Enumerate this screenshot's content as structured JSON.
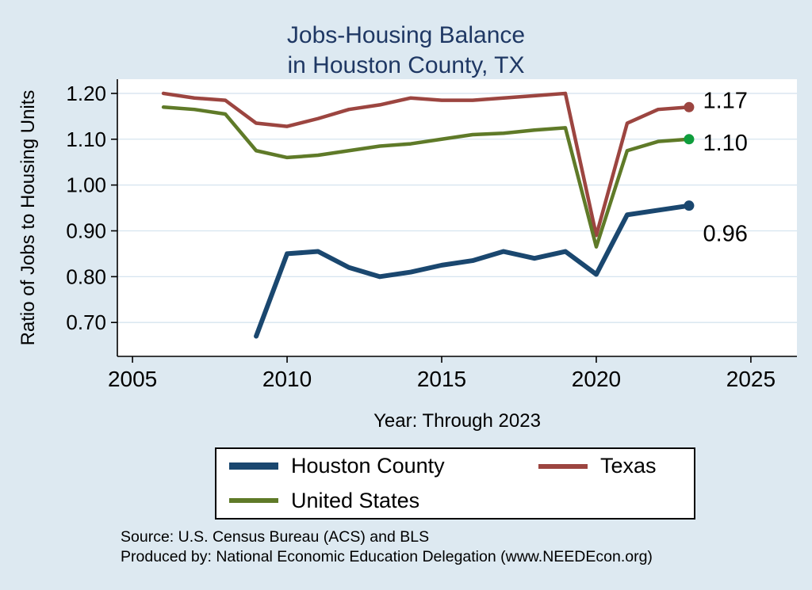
{
  "title": {
    "line1": "Jobs-Housing Balance",
    "line2": "in Houston County, TX",
    "color": "#1f3864"
  },
  "axes": {
    "y_label": "Ratio of Jobs to Housing Units",
    "x_label": "Year: Through 2023",
    "y_ticks": [
      0.7,
      0.8,
      0.9,
      1.0,
      1.1,
      1.2
    ],
    "x_ticks": [
      2005,
      2010,
      2015,
      2020,
      2025
    ],
    "xlim": [
      2004.51,
      2026.49
    ],
    "ylim": [
      0.626,
      1.231
    ],
    "grid": true,
    "gridline_color": "#d6e4ef"
  },
  "chart_data": {
    "type": "line",
    "title": "Jobs-Housing Balance in Houston County, TX",
    "xlabel": "Year: Through 2023",
    "ylabel": "Ratio of Jobs to Housing Units",
    "xlim": [
      2004.51,
      2026.49
    ],
    "ylim": [
      0.626,
      1.231
    ],
    "legend_position": "bottom",
    "series": [
      {
        "name": "Houston County",
        "color": "#1a476f",
        "width": 6,
        "x": [
          2009,
          2010,
          2011,
          2012,
          2013,
          2014,
          2015,
          2016,
          2017,
          2018,
          2019,
          2020,
          2021,
          2022,
          2023
        ],
        "values": [
          0.67,
          0.85,
          0.855,
          0.82,
          0.8,
          0.81,
          0.825,
          0.835,
          0.855,
          0.84,
          0.855,
          0.805,
          0.935,
          0.945,
          0.955
        ]
      },
      {
        "name": "Texas",
        "color": "#9c4540",
        "width": 4.5,
        "x": [
          2006,
          2007,
          2008,
          2009,
          2010,
          2011,
          2012,
          2013,
          2014,
          2015,
          2016,
          2017,
          2018,
          2019,
          2020,
          2021,
          2022,
          2023
        ],
        "values": [
          1.2,
          1.19,
          1.185,
          1.135,
          1.128,
          1.145,
          1.165,
          1.175,
          1.19,
          1.185,
          1.185,
          1.19,
          1.195,
          1.2,
          0.89,
          1.135,
          1.165,
          1.17
        ]
      },
      {
        "name": "United States",
        "color": "#5f7a28",
        "width": 4.5,
        "marker_color": "#0f9d3c",
        "x": [
          2006,
          2007,
          2008,
          2009,
          2010,
          2011,
          2012,
          2013,
          2014,
          2015,
          2016,
          2017,
          2018,
          2019,
          2020,
          2021,
          2022,
          2023
        ],
        "values": [
          1.17,
          1.165,
          1.155,
          1.075,
          1.06,
          1.065,
          1.075,
          1.085,
          1.09,
          1.1,
          1.11,
          1.113,
          1.12,
          1.125,
          0.865,
          1.075,
          1.095,
          1.1
        ]
      }
    ],
    "end_labels": [
      {
        "text": "1.17",
        "x": 2023.45,
        "y": 1.185
      },
      {
        "text": "1.10",
        "x": 2023.45,
        "y": 1.093
      },
      {
        "text": "0.96",
        "x": 2023.45,
        "y": 0.895
      }
    ]
  },
  "legend": {
    "items": [
      {
        "label": "Houston County",
        "color": "#1a476f",
        "thickness": 9
      },
      {
        "label": "Texas",
        "color": "#9c4540",
        "thickness": 6
      },
      {
        "label": "United States",
        "color": "#5f7a28",
        "thickness": 6
      }
    ]
  },
  "footer": {
    "source": "Source: U.S. Census Bureau (ACS) and BLS",
    "produced": "Produced by: National Economic Education Delegation (www.NEEDEcon.org)"
  }
}
